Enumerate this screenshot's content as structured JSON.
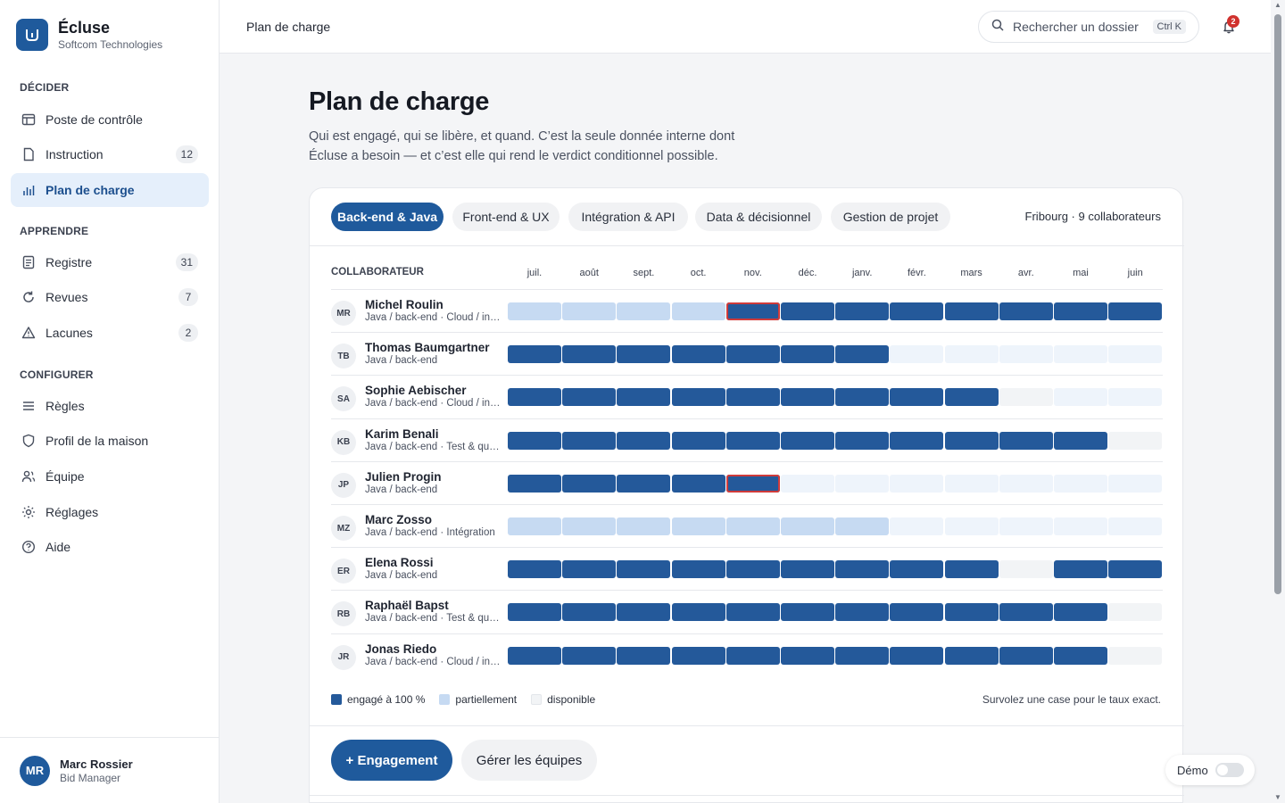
{
  "brand": {
    "name": "Écluse",
    "subtitle": "Softcom Technologies"
  },
  "sidebar": {
    "sections": [
      {
        "label": "DÉCIDER",
        "items": [
          {
            "label": "Poste de contrôle",
            "icon": "layout-icon",
            "badge": null,
            "active": false
          },
          {
            "label": "Instruction",
            "icon": "document-icon",
            "badge": "12",
            "active": false
          },
          {
            "label": "Plan de charge",
            "icon": "bar-chart-icon",
            "badge": null,
            "active": true
          }
        ]
      },
      {
        "label": "APPRENDRE",
        "items": [
          {
            "label": "Registre",
            "icon": "register-icon",
            "badge": "31",
            "active": false
          },
          {
            "label": "Revues",
            "icon": "refresh-icon",
            "badge": "7",
            "active": false
          },
          {
            "label": "Lacunes",
            "icon": "warning-icon",
            "badge": "2",
            "active": false
          }
        ]
      },
      {
        "label": "CONFIGURER",
        "items": [
          {
            "label": "Règles",
            "icon": "list-icon",
            "badge": null,
            "active": false
          },
          {
            "label": "Profil de la maison",
            "icon": "shield-icon",
            "badge": null,
            "active": false
          },
          {
            "label": "Équipe",
            "icon": "users-icon",
            "badge": null,
            "active": false
          },
          {
            "label": "Réglages",
            "icon": "sun-icon",
            "badge": null,
            "active": false
          },
          {
            "label": "Aide",
            "icon": "help-icon",
            "badge": null,
            "active": false
          }
        ]
      }
    ],
    "user": {
      "initials": "MR",
      "name": "Marc Rossier",
      "role": "Bid Manager"
    }
  },
  "header": {
    "breadcrumb": "Plan de charge",
    "search_placeholder": "Rechercher un dossier",
    "search_shortcut": "Ctrl K",
    "notification_count": "2"
  },
  "main": {
    "title": "Plan de charge",
    "description": "Qui est engagé, qui se libère, et quand. C’est la seule donnée interne dont Écluse a besoin — et c’est elle qui rend le verdict conditionnel possible.",
    "tabs": [
      "Back-end & Java",
      "Front-end & UX",
      "Intégration & API",
      "Data & décisionnel",
      "Gestion de projet"
    ],
    "active_tab": 0,
    "team_meta": "Fribourg · 9 collaborateurs",
    "column_header": "COLLABORATEUR",
    "months": [
      "juil.",
      "août",
      "sept.",
      "oct.",
      "nov.",
      "déc.",
      "janv.",
      "févr.",
      "mars",
      "avr.",
      "mai",
      "juin"
    ],
    "flagged_month_index": 4,
    "people": [
      {
        "initials": "MR",
        "name": "Michel Roulin",
        "skills": "Java / back-end · Cloud / infrastructure",
        "load": [
          "P",
          "P",
          "P",
          "P",
          "F",
          "F",
          "F",
          "F",
          "F",
          "F",
          "F",
          "F"
        ],
        "flag": [
          4
        ]
      },
      {
        "initials": "TB",
        "name": "Thomas Baumgartner",
        "skills": "Java / back-end",
        "load": [
          "F",
          "F",
          "F",
          "F",
          "F",
          "F",
          "F",
          "L",
          "L",
          "L",
          "L",
          "L"
        ],
        "flag": []
      },
      {
        "initials": "SA",
        "name": "Sophie Aebischer",
        "skills": "Java / back-end · Cloud / infrastructure",
        "load": [
          "F",
          "F",
          "F",
          "F",
          "F",
          "F",
          "F",
          "F",
          "F",
          "N",
          "L",
          "L"
        ],
        "flag": []
      },
      {
        "initials": "KB",
        "name": "Karim Benali",
        "skills": "Java / back-end · Test & qualité",
        "load": [
          "F",
          "F",
          "F",
          "F",
          "F",
          "F",
          "F",
          "F",
          "F",
          "F",
          "F",
          "N"
        ],
        "flag": []
      },
      {
        "initials": "JP",
        "name": "Julien Progin",
        "skills": "Java / back-end",
        "load": [
          "F",
          "F",
          "F",
          "F",
          "F",
          "L",
          "L",
          "L",
          "L",
          "L",
          "L",
          "L"
        ],
        "flag": [
          4
        ]
      },
      {
        "initials": "MZ",
        "name": "Marc Zosso",
        "skills": "Java / back-end · Intégration",
        "load": [
          "P",
          "P",
          "P",
          "P",
          "P",
          "P",
          "P",
          "L",
          "L",
          "L",
          "L",
          "L"
        ],
        "flag": []
      },
      {
        "initials": "ER",
        "name": "Elena Rossi",
        "skills": "Java / back-end",
        "load": [
          "F",
          "F",
          "F",
          "F",
          "F",
          "F",
          "F",
          "F",
          "F",
          "N",
          "F",
          "F"
        ],
        "flag": []
      },
      {
        "initials": "RB",
        "name": "Raphaël Bapst",
        "skills": "Java / back-end · Test & qualité",
        "load": [
          "F",
          "F",
          "F",
          "F",
          "F",
          "F",
          "F",
          "F",
          "F",
          "F",
          "F",
          "N"
        ],
        "flag": []
      },
      {
        "initials": "JR",
        "name": "Jonas Riedo",
        "skills": "Java / back-end · Cloud / infrastructure",
        "load": [
          "F",
          "F",
          "F",
          "F",
          "F",
          "F",
          "F",
          "F",
          "F",
          "F",
          "F",
          "N"
        ],
        "flag": []
      }
    ],
    "legend": {
      "full": "engagé à 100 %",
      "partial": "partiellement",
      "free": "disponible"
    },
    "hint": "Survolez une case pour le taux exact.",
    "primary_button": "+ Engagement",
    "secondary_button": "Gérer les équipes"
  },
  "demo": {
    "label": "Démo",
    "enabled": false
  },
  "colors": {
    "accent": "#1f5a9c",
    "full": "#24599a",
    "partial": "#c6daf2",
    "free": "#eef4fb",
    "flag": "#cf3b3b"
  }
}
